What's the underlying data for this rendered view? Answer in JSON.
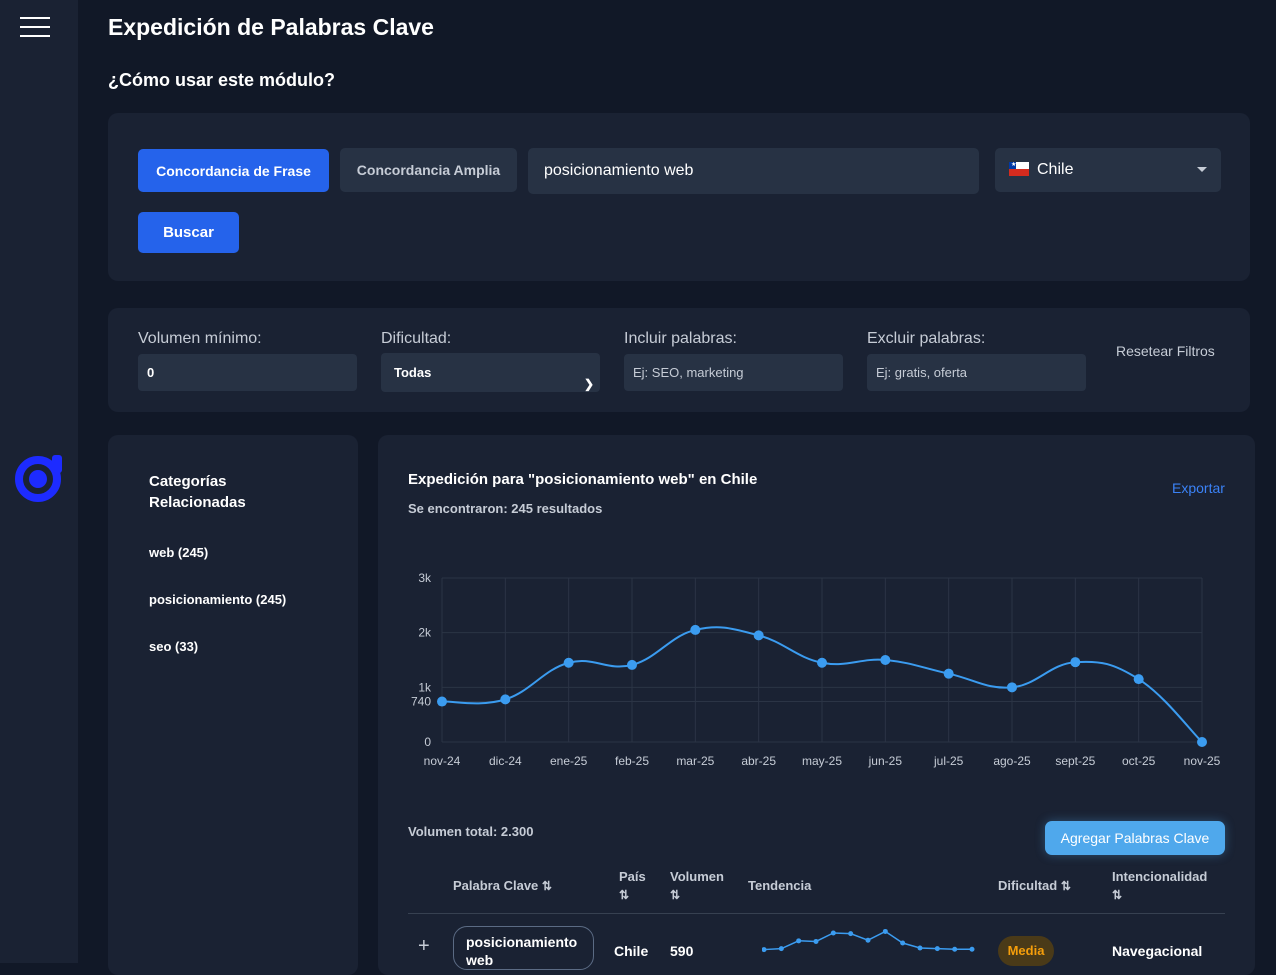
{
  "page": {
    "title": "Expedición de Palabras Clave",
    "help_link": "¿Cómo usar este módulo?"
  },
  "search": {
    "phrase_match_label": "Concordancia de Frase",
    "broad_match_label": "Concordancia Amplia",
    "query": "posicionamiento web",
    "country": "Chile",
    "search_button": "Buscar"
  },
  "filters": {
    "min_volume_label": "Volumen mínimo:",
    "min_volume_value": "0",
    "difficulty_label": "Dificultad:",
    "difficulty_value": "Todas",
    "include_label": "Incluir palabras:",
    "include_placeholder": "Ej: SEO, marketing",
    "exclude_label": "Excluir palabras:",
    "exclude_placeholder": "Ej: gratis, oferta",
    "reset_label": "Resetear Filtros"
  },
  "categories": {
    "title": "Categorías Relacionadas",
    "items": [
      "web (245)",
      "posicionamiento (245)",
      "seo (33)"
    ]
  },
  "results": {
    "title": "Expedición para \"posicionamiento web\" en Chile",
    "count": "Se encontraron: 245 resultados",
    "export_label": "Exportar",
    "total_volume": "Volumen total: 2.300",
    "add_keywords_button": "Agregar Palabras Clave"
  },
  "chart_data": {
    "type": "line",
    "categories": [
      "nov-24",
      "dic-24",
      "ene-25",
      "feb-25",
      "mar-25",
      "abr-25",
      "may-25",
      "jun-25",
      "jul-25",
      "ago-25",
      "sept-25",
      "oct-25",
      "nov-25"
    ],
    "values": [
      740,
      780,
      1450,
      1410,
      2050,
      1950,
      1450,
      1500,
      1250,
      1000,
      1460,
      1150,
      0
    ],
    "y_ticks": [
      0,
      740,
      1000,
      2000,
      3000
    ],
    "y_tick_labels": [
      "0",
      "740",
      "1k",
      "2k",
      "3k"
    ],
    "grid": true,
    "line_color": "#3b9cf0",
    "point_color": "#3b9cf0"
  },
  "table": {
    "headers": {
      "keyword": "Palabra Clave",
      "country": "País",
      "volume": "Volumen",
      "trend": "Tendencia",
      "difficulty": "Dificultad",
      "intent": "Intencionalidad"
    },
    "sort_icon": "⇅",
    "expand_icon": "+",
    "rows": [
      {
        "keyword": "posicionamiento web",
        "country": "Chile",
        "volume": "590",
        "trend": [
          110,
          140,
          390,
          370,
          640,
          620,
          410,
          690,
          320,
          160,
          140,
          120,
          120
        ],
        "difficulty": "Media",
        "intent": "Navegacional"
      }
    ]
  },
  "colors": {
    "background": "#111827",
    "card": "#1a2233",
    "primary": "#2563eb",
    "accent": "#4fa8ec",
    "logo": "#1d2bff",
    "warning": "#f59e0b"
  },
  "icons": {
    "menu": "hamburger-icon",
    "logo": "brand-logo-icon",
    "flag": "chile-flag-icon",
    "dropdown": "chevron-down-icon",
    "sort": "sort-icon",
    "expand": "plus-icon"
  }
}
